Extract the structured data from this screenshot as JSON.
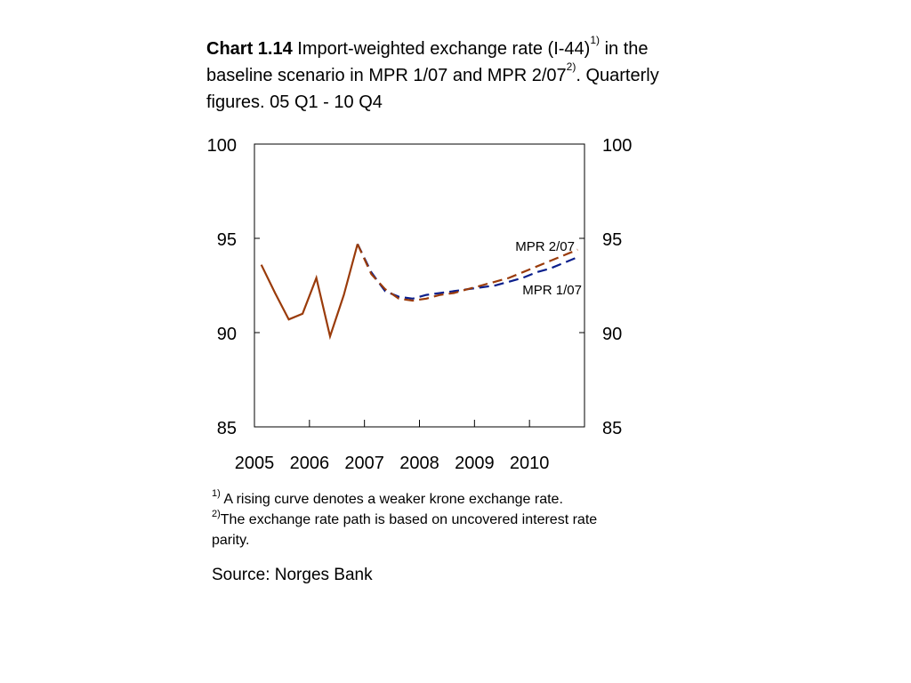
{
  "title": {
    "label": "Chart 1.14",
    "text1": "Import-weighted exchange rate (I-44)",
    "sup1": "1)",
    "text2": " in the baseline scenario in MPR 1/07 and MPR 2/07",
    "sup2": "2)",
    "text3": ". Quarterly figures. 05 Q1 - 10 Q4"
  },
  "chart_data": {
    "type": "line",
    "title": "",
    "xlabel": "",
    "ylabel": "",
    "x_tick_labels": [
      "2005",
      "2006",
      "2007",
      "2008",
      "2009",
      "2010"
    ],
    "y_ticks_left": [
      "100",
      "95",
      "90",
      "85"
    ],
    "y_ticks_right": [
      "100",
      "95",
      "90",
      "85"
    ],
    "ylim": [
      85,
      100
    ],
    "x_quarters": [
      "05 Q1",
      "05 Q2",
      "05 Q3",
      "05 Q4",
      "06 Q1",
      "06 Q2",
      "06 Q3",
      "06 Q4",
      "07 Q1",
      "07 Q2",
      "07 Q3",
      "07 Q4",
      "08 Q1",
      "08 Q2",
      "08 Q3",
      "08 Q4",
      "09 Q1",
      "09 Q2",
      "09 Q3",
      "09 Q4",
      "10 Q1",
      "10 Q2",
      "10 Q3",
      "10 Q4"
    ],
    "grid": false,
    "series": [
      {
        "name": "MPR 2/07",
        "color": "#9a3b0a",
        "style": "solid-then-dashed",
        "values": [
          93.6,
          92.1,
          90.7,
          91.0,
          92.9,
          89.8,
          92.0,
          94.7,
          93.1,
          92.3,
          91.8,
          91.7,
          91.8,
          92.0,
          92.1,
          92.3,
          92.5,
          92.7,
          92.9,
          93.2,
          93.5,
          93.8,
          94.1,
          94.4
        ]
      },
      {
        "name": "MPR 1/07",
        "color": "#0b1f8c",
        "style": "dashed",
        "values": [
          null,
          null,
          null,
          null,
          null,
          null,
          null,
          94.7,
          93.2,
          92.2,
          91.9,
          91.8,
          92.0,
          92.1,
          92.2,
          92.3,
          92.4,
          92.5,
          92.7,
          92.9,
          93.2,
          93.4,
          93.7,
          94.0
        ]
      }
    ],
    "series_labels": [
      {
        "text": "MPR 2/07"
      },
      {
        "text": "MPR 1/07"
      }
    ]
  },
  "notes": {
    "n1_sup": "1)",
    "n1_text": " A rising curve denotes a weaker krone exchange rate.",
    "n2_sup": "2)",
    "n2_text": "The exchange rate path is based on uncovered interest rate parity."
  },
  "source": "Source: Norges Bank"
}
